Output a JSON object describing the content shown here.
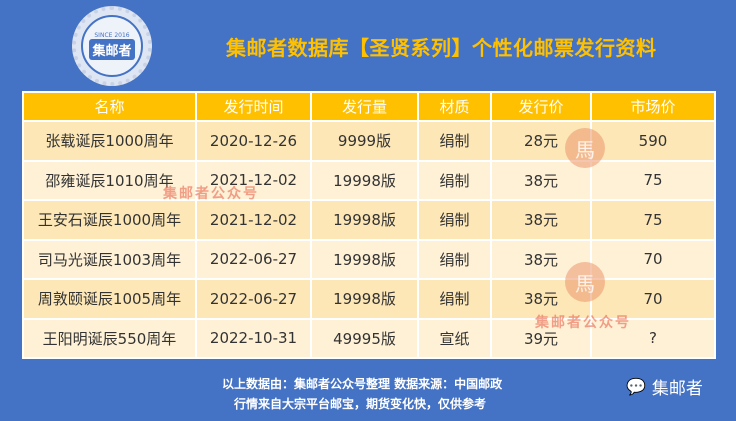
{
  "logo": {
    "text": "集邮者",
    "since": "SINCE 2016"
  },
  "title": "集邮者数据库【圣贤系列】个性化邮票发行资料",
  "table": {
    "headers": [
      "名称",
      "发行时间",
      "发行量",
      "材质",
      "发行价",
      "市场价"
    ],
    "rows": [
      [
        "张载诞辰1000周年",
        "2020-12-26",
        "9999版",
        "绢制",
        "28元",
        "590"
      ],
      [
        "邵雍诞辰1010周年",
        "2021-12-02",
        "19998版",
        "绢制",
        "38元",
        "75"
      ],
      [
        "王安石诞辰1000周年",
        "2021-12-02",
        "19998版",
        "绢制",
        "38元",
        "75"
      ],
      [
        "司马光诞辰1003周年",
        "2022-06-27",
        "19998版",
        "绢制",
        "38元",
        "70"
      ],
      [
        "周敦颐诞辰1005周年",
        "2022-06-27",
        "19998版",
        "绢制",
        "38元",
        "70"
      ],
      [
        "王阳明诞辰550周年",
        "2022-10-31",
        "49995版",
        "宣纸",
        "39元",
        "?"
      ]
    ]
  },
  "watermark": "集邮者公众号",
  "footer": {
    "line1": "以上数据由：集邮者公众号整理 数据来源：中国邮政",
    "line2": "行情来自大宗平台邮宝，期货变化快，仅供参考"
  },
  "brand": {
    "icon": "wechat-icon",
    "name": "集邮者"
  },
  "colors": {
    "background": "#4472c4",
    "header": "#ffc000",
    "title": "#ffc000"
  }
}
